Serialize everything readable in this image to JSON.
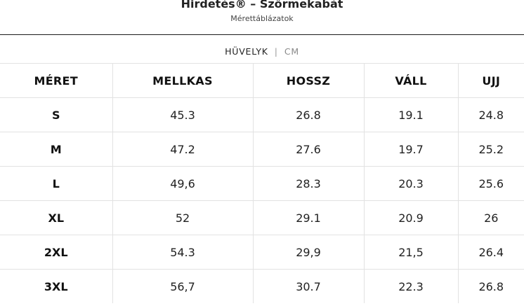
{
  "header": {
    "title": "Hirdetés® – Szőrmekabát",
    "subtitle": "Mérettáblázatok"
  },
  "units": {
    "active": "HÜVELYK",
    "separator": "|",
    "inactive": "CM"
  },
  "table": {
    "columns": [
      "MÉRET",
      "MELLKAS",
      "HOSSZ",
      "VÁLL",
      "UJJ"
    ],
    "rows": [
      [
        "S",
        "45.3",
        "26.8",
        "19.1",
        "24.8"
      ],
      [
        "M",
        "47.2",
        "27.6",
        "19.7",
        "25.2"
      ],
      [
        "L",
        "49,6",
        "28.3",
        "20.3",
        "25.6"
      ],
      [
        "XL",
        "52",
        "29.1",
        "20.9",
        "26"
      ],
      [
        "2XL",
        "54.3",
        "29,9",
        "21,5",
        "26.4"
      ],
      [
        "3XL",
        "56,7",
        "30.7",
        "22.3",
        "26.8"
      ]
    ]
  }
}
